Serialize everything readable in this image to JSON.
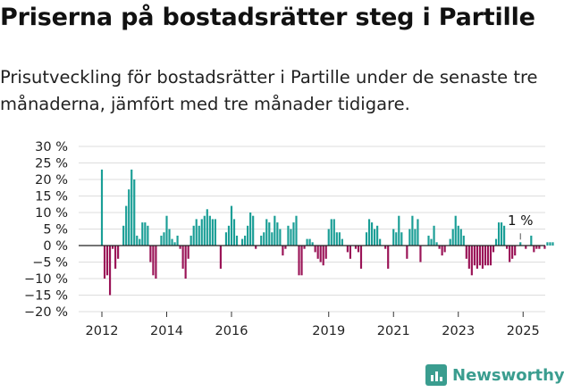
{
  "title": "Priserna på bostadsrätter steg i Partille",
  "subtitle": "Prisutveckling för bostadsrätter i Partille under de senaste tre månaderna, jämfört med tre månader tidigare.",
  "brand": {
    "name": "Newsworthy",
    "logo_icon": "newsworthy-logo-icon"
  },
  "chart_data": {
    "type": "bar",
    "title": "",
    "xlabel": "",
    "ylabel": "",
    "ylim": [
      -20,
      30
    ],
    "ytick_labels": [
      "30 %",
      "25 %",
      "20 %",
      "15 %",
      "10 %",
      "5 %",
      "0 %",
      "−5 %",
      "−10 %",
      "−15 %",
      "−20 %"
    ],
    "yticks": [
      30,
      25,
      20,
      15,
      10,
      5,
      0,
      -5,
      -10,
      -15,
      -20
    ],
    "xtick_labels": [
      "2012",
      "2014",
      "2016",
      "2019",
      "2021",
      "2023",
      "2025"
    ],
    "xticks": [
      "2012-01",
      "2014-01",
      "2016-01",
      "2019-01",
      "2021-01",
      "2023-01",
      "2025-01"
    ],
    "grid": "horizontal",
    "colors": {
      "positive": "#1a9e96",
      "negative": "#9a1457"
    },
    "annotation": {
      "text": "1 %",
      "month": "2024-12",
      "value": 1
    },
    "start_month": "2012-01",
    "values": [
      23,
      -10,
      -9,
      -15,
      -1,
      -7,
      -4,
      0,
      6,
      12,
      17,
      23,
      20,
      3,
      2,
      7,
      7,
      6,
      -5,
      -9,
      -10,
      0,
      3,
      4,
      9,
      5,
      2,
      1,
      3,
      -1,
      -7,
      -10,
      -4,
      3,
      6,
      8,
      6,
      8,
      9,
      11,
      9,
      8,
      8,
      0,
      -7,
      0,
      4,
      6,
      12,
      8,
      3,
      0,
      2,
      3,
      6,
      10,
      9,
      -1,
      0,
      3,
      4,
      8,
      7,
      4,
      9,
      7,
      5,
      -3,
      -1,
      6,
      5,
      7,
      9,
      -9,
      -9,
      -1,
      2,
      2,
      1,
      -2,
      -4,
      -5,
      -6,
      -4,
      5,
      8,
      8,
      4,
      4,
      2,
      0,
      -2,
      -4,
      0,
      -1,
      -2,
      -7,
      0,
      4,
      8,
      7,
      5,
      6,
      2,
      0,
      -1,
      -7,
      0,
      5,
      4,
      9,
      4,
      0,
      -4,
      5,
      9,
      5,
      8,
      -5,
      0,
      0,
      3,
      2,
      6,
      1,
      -1,
      -3,
      -2,
      0,
      2,
      5,
      9,
      6,
      5,
      3,
      -4,
      -7,
      -9,
      -6,
      -7,
      -6,
      -7,
      -6,
      -6,
      -6,
      -2,
      2,
      7,
      7,
      6,
      -1,
      -5,
      -4,
      -3,
      0,
      1,
      0,
      -1,
      0,
      3,
      -2,
      -1,
      -1,
      0,
      -1,
      1,
      1,
      1,
      0
    ]
  }
}
